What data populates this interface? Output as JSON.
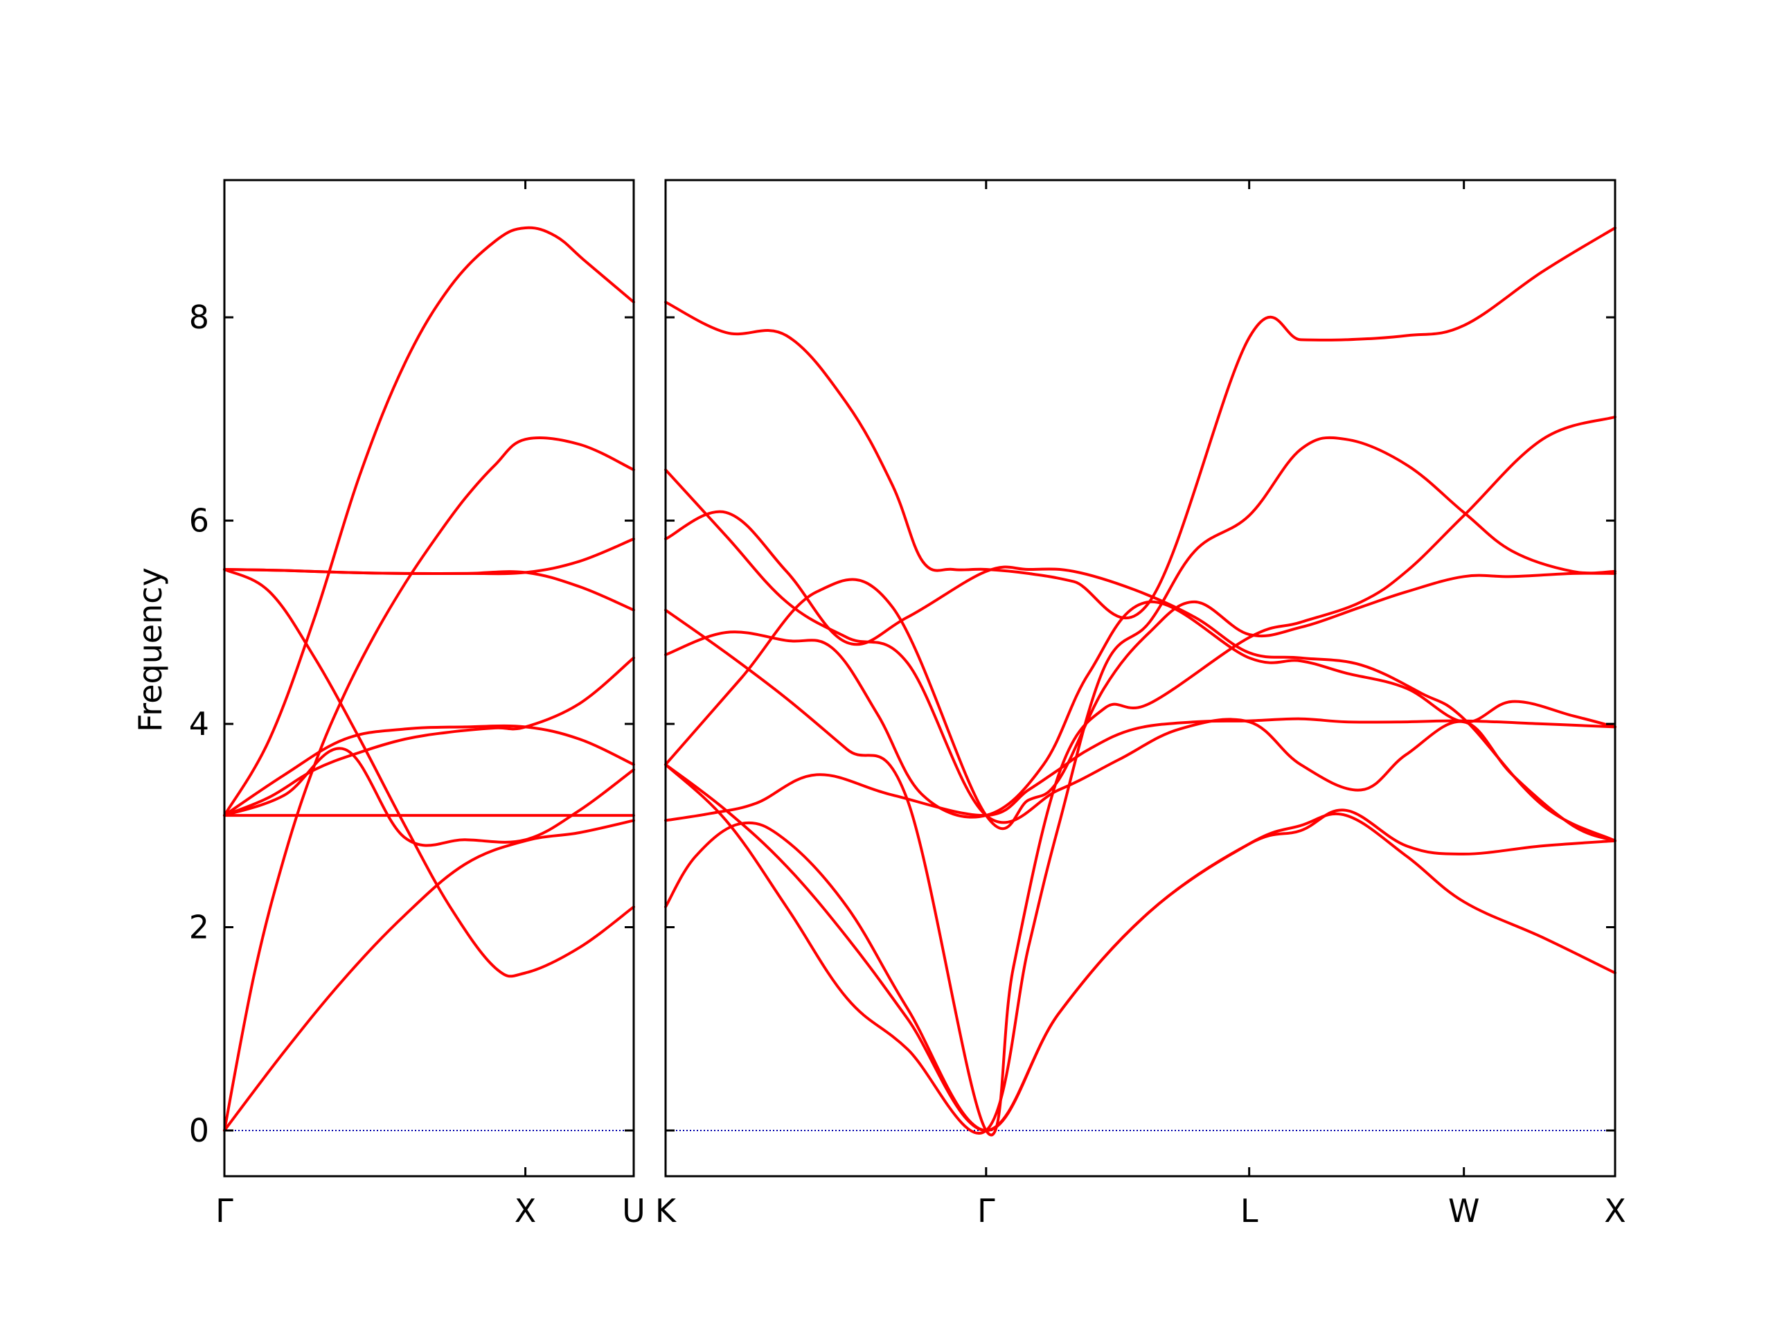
{
  "chart_data": [
    {
      "type": "line",
      "ylabel": "Frequency",
      "ylim": [
        -0.45,
        9.35
      ],
      "yticks": [
        0,
        2,
        4,
        6,
        8
      ],
      "grid": false,
      "legend": "none",
      "colors": {
        "bands": "#ff0000",
        "zero_line": "#0000aa",
        "axes": "#000000"
      },
      "path_labels": [
        "Γ",
        "X",
        "U"
      ],
      "path_label_positions": [
        0,
        1,
        1.36
      ],
      "xlim": [
        0,
        1.36
      ],
      "series": [
        {
          "x": [
            0,
            0.2,
            0.4,
            0.6,
            0.8,
            1.0,
            1.18,
            1.36
          ],
          "values": [
            0,
            0.78,
            1.5,
            2.12,
            2.62,
            2.85,
            2.93,
            3.05
          ]
        },
        {
          "x": [
            0,
            0.1,
            0.2,
            0.3,
            0.4,
            0.5,
            0.6,
            0.7,
            0.8,
            0.9,
            1.0,
            1.18,
            1.36
          ],
          "values": [
            0,
            1.55,
            2.7,
            3.6,
            4.3,
            4.88,
            5.38,
            5.82,
            6.22,
            6.55,
            6.8,
            6.75,
            6.5
          ]
        },
        {
          "x": [
            0,
            0.15,
            0.3,
            0.45,
            0.6,
            0.75,
            0.9,
            1.0,
            1.1,
            1.2,
            1.36
          ],
          "values": [
            3.1,
            3.85,
            5.05,
            6.45,
            7.55,
            8.3,
            8.75,
            8.88,
            8.8,
            8.55,
            8.15
          ]
        },
        {
          "x": [
            0,
            0.15,
            0.3,
            0.45,
            0.6,
            0.75,
            0.9,
            1.0,
            1.18,
            1.36
          ],
          "values": [
            3.1,
            3.28,
            3.55,
            3.72,
            3.85,
            3.92,
            3.96,
            3.97,
            4.2,
            4.65
          ]
        },
        {
          "x": [
            0,
            0.15,
            0.3,
            0.45,
            0.6,
            0.75,
            0.9,
            1.0,
            1.18,
            1.36
          ],
          "values": [
            5.52,
            5.3,
            4.65,
            3.85,
            3.0,
            2.2,
            1.6,
            1.55,
            1.8,
            2.2
          ]
        },
        {
          "x": [
            0,
            0.2,
            0.4,
            0.6,
            0.8,
            1.0,
            1.18,
            1.36
          ],
          "values": [
            5.52,
            5.51,
            5.49,
            5.48,
            5.48,
            5.49,
            5.6,
            5.82
          ]
        },
        {
          "x": [
            0,
            0.2,
            0.4,
            0.6,
            0.8,
            1.0,
            1.18,
            1.36
          ],
          "values": [
            5.52,
            5.51,
            5.49,
            5.48,
            5.48,
            5.49,
            5.35,
            5.12
          ]
        },
        {
          "x": [
            0,
            0.2,
            0.4,
            0.6,
            0.8,
            1.0,
            1.18,
            1.36
          ],
          "values": [
            3.1,
            3.1,
            3.1,
            3.1,
            3.1,
            3.1,
            3.1,
            3.1
          ]
        },
        {
          "x": [
            0,
            0.2,
            0.4,
            0.6,
            0.8,
            1.0,
            1.18,
            1.36
          ],
          "values": [
            3.1,
            3.5,
            3.85,
            3.95,
            3.97,
            3.97,
            3.85,
            3.6
          ]
        },
        {
          "x": [
            0,
            0.2,
            0.4,
            0.6,
            0.8,
            1.0,
            1.18,
            1.36
          ],
          "values": [
            3.1,
            3.3,
            3.75,
            2.88,
            2.86,
            2.86,
            3.15,
            3.55
          ]
        }
      ]
    },
    {
      "type": "line",
      "ylabel": "",
      "ylim": [
        -0.45,
        9.35
      ],
      "yticks": [
        0,
        2,
        4,
        6,
        8
      ],
      "grid": false,
      "legend": "none",
      "colors": {
        "bands": "#ff0000",
        "zero_line": "#0000aa",
        "axes": "#000000"
      },
      "path_labels": [
        "K",
        "Γ",
        "L",
        "W",
        "X"
      ],
      "path_label_positions": [
        0,
        1.06,
        1.93,
        2.64,
        3.14
      ],
      "xlim": [
        0,
        3.14
      ],
      "series": [
        {
          "x": [
            0,
            0.2,
            0.4,
            0.6,
            0.8,
            1.06,
            1.3,
            1.6,
            1.93,
            2.1,
            2.25,
            2.45,
            2.64,
            2.9,
            3.14
          ],
          "values": [
            3.6,
            3.15,
            2.6,
            1.9,
            1.1,
            0,
            1.15,
            2.15,
            2.82,
            3.0,
            3.1,
            2.7,
            2.25,
            1.9,
            1.55
          ]
        },
        {
          "x": [
            0,
            0.1,
            0.25,
            0.4,
            0.6,
            0.8,
            1.06,
            1.3,
            1.6,
            1.93,
            2.1,
            2.25,
            2.45,
            2.64,
            2.9,
            3.14
          ],
          "values": [
            2.2,
            2.7,
            3.02,
            2.85,
            2.2,
            1.2,
            0,
            1.15,
            2.15,
            2.82,
            2.95,
            3.15,
            2.8,
            2.72,
            2.8,
            2.85
          ]
        },
        {
          "x": [
            0,
            0.2,
            0.4,
            0.6,
            0.8,
            1.06,
            1.15,
            1.3,
            1.45,
            1.6,
            1.93,
            2.1,
            2.3,
            2.45,
            2.64,
            2.9,
            3.14
          ],
          "values": [
            5.12,
            4.7,
            4.25,
            3.75,
            3.25,
            0,
            1.6,
            3.5,
            4.15,
            4.2,
            4.85,
            5.0,
            5.2,
            5.5,
            6.05,
            6.8,
            7.02
          ]
        },
        {
          "x": [
            0,
            0.2,
            0.4,
            0.6,
            0.8,
            1.06,
            1.2,
            1.35,
            1.55,
            1.75,
            1.93,
            2.1,
            2.3,
            2.5,
            2.64,
            2.9,
            3.14
          ],
          "values": [
            5.82,
            6.08,
            5.5,
            4.8,
            5.05,
            5.5,
            5.52,
            5.5,
            5.32,
            5.05,
            4.7,
            4.65,
            4.58,
            4.3,
            4.05,
            3.2,
            2.85
          ]
        },
        {
          "x": [
            0,
            0.15,
            0.3,
            0.5,
            0.75,
            1.06,
            1.2,
            1.3,
            1.4,
            1.55,
            1.75,
            1.93,
            2.1,
            2.25,
            2.45,
            2.64,
            2.9,
            3.14
          ],
          "values": [
            3.05,
            3.12,
            3.22,
            3.5,
            3.3,
            3.1,
            3.35,
            3.55,
            3.75,
            3.95,
            4.02,
            4.03,
            4.05,
            4.02,
            4.02,
            4.03,
            4.0,
            3.97
          ]
        },
        {
          "x": [
            0,
            0.2,
            0.4,
            0.6,
            0.8,
            1.06,
            1.2,
            1.3,
            1.45,
            1.6,
            1.75,
            1.93,
            2.1,
            2.25,
            2.45,
            2.64,
            2.8,
            3.0,
            3.14
          ],
          "values": [
            3.6,
            3.05,
            2.2,
            1.3,
            0.8,
            0,
            1.8,
            3.0,
            4.55,
            5.0,
            5.7,
            6.05,
            6.7,
            6.8,
            6.55,
            6.08,
            5.7,
            5.5,
            5.5
          ]
        },
        {
          "x": [
            0,
            0.2,
            0.4,
            0.6,
            0.75,
            0.85,
            0.95,
            1.06,
            1.2,
            1.35,
            1.6,
            1.93,
            2.1,
            2.25,
            2.45,
            2.64,
            2.9,
            3.14
          ],
          "values": [
            8.15,
            7.85,
            7.82,
            7.15,
            6.35,
            5.6,
            5.52,
            5.52,
            5.48,
            5.4,
            5.2,
            7.8,
            7.78,
            7.78,
            7.82,
            7.92,
            8.45,
            8.88
          ]
        },
        {
          "x": [
            0,
            0.2,
            0.4,
            0.55,
            0.7,
            0.85,
            1.06,
            1.25,
            1.4,
            1.6,
            1.93,
            2.1,
            2.25,
            2.45,
            2.64,
            2.8,
            3.0,
            3.14
          ],
          "values": [
            4.68,
            4.9,
            4.82,
            4.75,
            4.1,
            3.3,
            3.1,
            3.6,
            4.5,
            5.2,
            4.65,
            4.62,
            4.5,
            4.35,
            4.02,
            4.22,
            4.08,
            3.97
          ]
        },
        {
          "x": [
            0,
            0.2,
            0.4,
            0.6,
            0.8,
            1.06,
            1.3,
            1.5,
            1.7,
            1.93,
            2.1,
            2.3,
            2.45,
            2.64,
            2.8,
            3.0,
            3.14
          ],
          "values": [
            6.5,
            5.85,
            5.2,
            4.85,
            4.6,
            3.1,
            3.35,
            3.65,
            3.95,
            4.02,
            3.6,
            3.35,
            3.7,
            4.02,
            3.5,
            3.0,
            2.85
          ]
        },
        {
          "x": [
            0,
            0.25,
            0.5,
            0.75,
            1.06,
            1.2,
            1.3,
            1.45,
            1.6,
            1.75,
            1.93,
            2.1,
            2.3,
            2.45,
            2.64,
            2.8,
            3.0,
            3.14
          ],
          "values": [
            3.6,
            4.45,
            5.3,
            5.15,
            3.1,
            3.25,
            3.45,
            4.35,
            4.9,
            5.2,
            4.88,
            4.95,
            5.15,
            5.3,
            5.45,
            5.45,
            5.48,
            5.48
          ]
        }
      ]
    }
  ]
}
